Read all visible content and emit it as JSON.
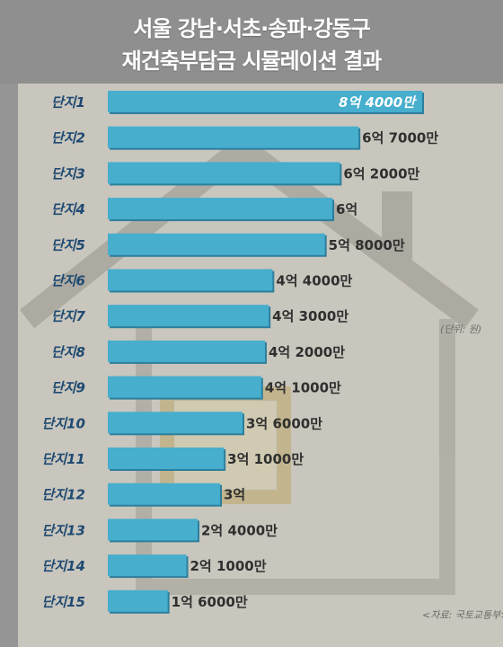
{
  "header": {
    "title_line1": "서울 강남·서초·송파·강동구",
    "title_line2": "재건축부담금 시뮬레이션 결과"
  },
  "unit_note": "(단위: 원)",
  "source_note": "<자료: 국토교통부>",
  "colors": {
    "bar": "#47aecd",
    "bar_shadow": "#2d7f9c",
    "category_text": "#1f4a72",
    "value_text": "#2f2f2f",
    "background": "#c9c6bd",
    "header": "#8f8f8f"
  },
  "chart_data": {
    "type": "bar",
    "orientation": "horizontal",
    "title": "서울 강남·서초·송파·강동구 재건축부담금 시뮬레이션 결과",
    "unit": "(단위: 원)",
    "categories": [
      "단지1",
      "단지2",
      "단지3",
      "단지4",
      "단지5",
      "단지6",
      "단지7",
      "단지8",
      "단지9",
      "단지10",
      "단지11",
      "단지12",
      "단지13",
      "단지14",
      "단지15"
    ],
    "values": [
      840000000,
      670000000,
      620000000,
      600000000,
      580000000,
      440000000,
      430000000,
      420000000,
      410000000,
      360000000,
      310000000,
      300000000,
      240000000,
      210000000,
      160000000
    ],
    "value_labels": [
      "8억 4000만",
      "6억 7000만",
      "6억 2000만",
      "6억",
      "5억 8000만",
      "4억 4000만",
      "4억 3000만",
      "4억 2000만",
      "4억 1000만",
      "3억 6000만",
      "3억 1000만",
      "3억",
      "2억 4000만",
      "2억 1000만",
      "1억 6000만"
    ],
    "xlim": [
      0,
      840000000
    ],
    "grid": false,
    "legend": "none"
  }
}
